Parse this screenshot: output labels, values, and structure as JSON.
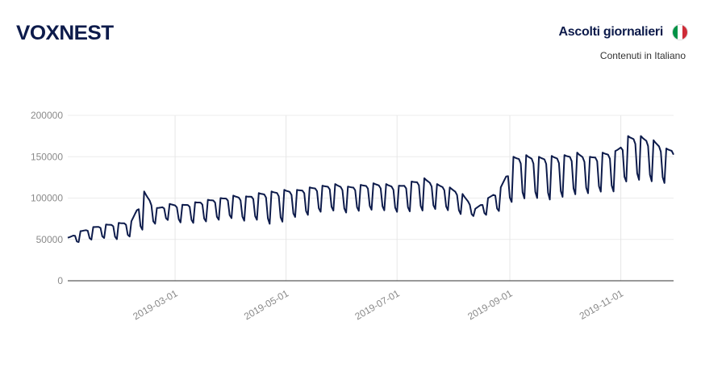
{
  "brand": {
    "logo_text": "VOXNEST",
    "color": "#0d1b4b"
  },
  "header": {
    "title": "Ascolti giornalieri",
    "subtitle": "Contenuti in Italiano",
    "flag_icon": "italy-flag-icon",
    "flag_colors": [
      "#009246",
      "#ffffff",
      "#ce2b37"
    ]
  },
  "chart_data": {
    "type": "line",
    "title": "Ascolti giornalieri",
    "subtitle": "Contenuti in Italiano",
    "xlabel": "",
    "ylabel": "",
    "x_range": [
      "2019-01-01",
      "2019-11-30"
    ],
    "ylim": [
      0,
      200000
    ],
    "y_ticks": [
      0,
      50000,
      100000,
      150000,
      200000
    ],
    "y_tick_labels": [
      "0",
      "50000",
      "100000",
      "150000",
      "200000"
    ],
    "x_ticks": [
      "2019-03-01",
      "2019-05-01",
      "2019-07-01",
      "2019-09-01",
      "2019-11-01"
    ],
    "grid": true,
    "line_color": "#0d1b4b",
    "series": [
      {
        "x": [
          "2019-01-01",
          "2019-01-08",
          "2019-01-15",
          "2019-01-22",
          "2019-01-29",
          "2019-02-05",
          "2019-02-12",
          "2019-02-19",
          "2019-02-26",
          "2019-03-05",
          "2019-03-12",
          "2019-03-19",
          "2019-03-26",
          "2019-04-02",
          "2019-04-09",
          "2019-04-16",
          "2019-04-23",
          "2019-04-30",
          "2019-05-07",
          "2019-05-14",
          "2019-05-21",
          "2019-05-28",
          "2019-06-04",
          "2019-06-11",
          "2019-06-18",
          "2019-06-25",
          "2019-07-02",
          "2019-07-09",
          "2019-07-16",
          "2019-07-23",
          "2019-07-30",
          "2019-08-06",
          "2019-08-13",
          "2019-08-20",
          "2019-08-27",
          "2019-09-03",
          "2019-09-10",
          "2019-09-17",
          "2019-09-24",
          "2019-10-01",
          "2019-10-08",
          "2019-10-15",
          "2019-10-22",
          "2019-10-29",
          "2019-11-05",
          "2019-11-12",
          "2019-11-19",
          "2019-11-26"
        ],
        "peak": [
          52000,
          60000,
          65000,
          68000,
          70000,
          72000,
          108000,
          88000,
          93000,
          92000,
          95000,
          98000,
          100000,
          103000,
          102000,
          106000,
          108000,
          110000,
          110000,
          113000,
          115000,
          117000,
          114000,
          116000,
          118000,
          117000,
          115000,
          120000,
          124000,
          117000,
          113000,
          105000,
          87000,
          100000,
          113000,
          150000,
          152000,
          150000,
          151000,
          152000,
          155000,
          150000,
          155000,
          157000,
          175000,
          175000,
          170000,
          160000
        ],
        "trough": [
          40000,
          48000,
          50000,
          52000,
          50000,
          54000,
          63000,
          70000,
          74000,
          70000,
          70000,
          72000,
          74000,
          76000,
          72000,
          74000,
          68000,
          72000,
          78000,
          80000,
          84000,
          85000,
          82000,
          85000,
          86000,
          85000,
          83000,
          84000,
          85000,
          87000,
          85000,
          80000,
          78000,
          80000,
          85000,
          97000,
          100000,
          100000,
          98000,
          102000,
          105000,
          106000,
          108000,
          108000,
          122000,
          122000,
          120000,
          118000
        ]
      }
    ]
  }
}
